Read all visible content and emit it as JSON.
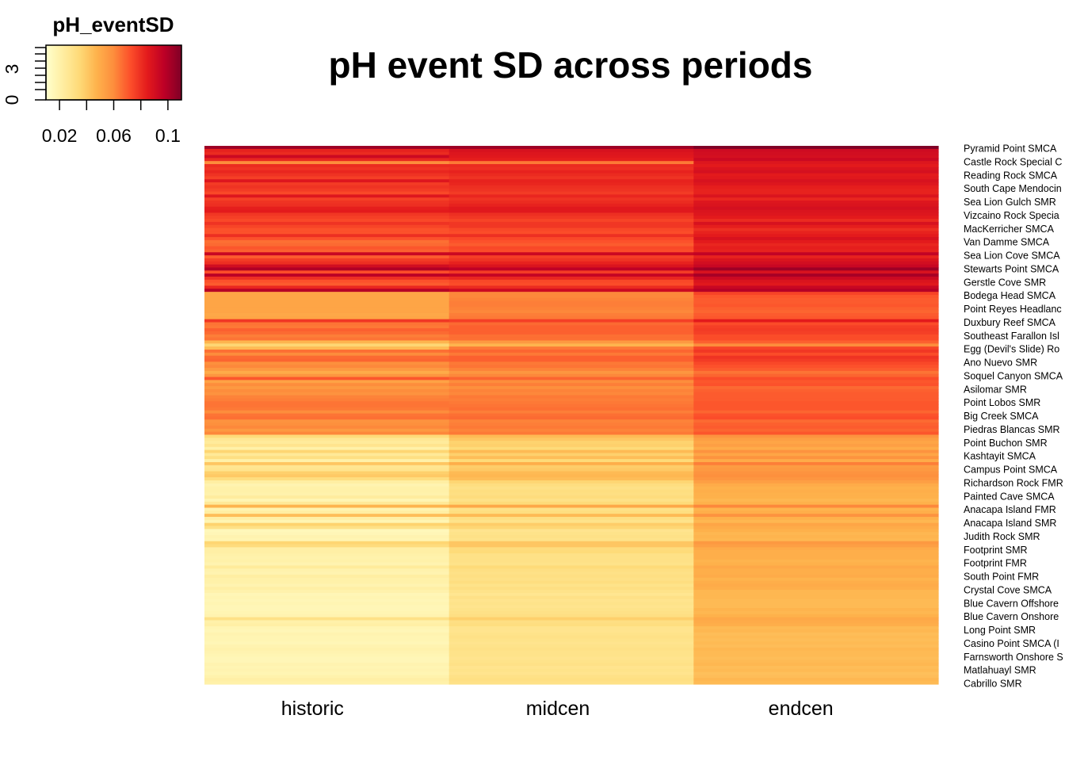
{
  "chart_data": {
    "type": "heatmap",
    "title": "pH event SD across periods",
    "columns": [
      "historic",
      "midcen",
      "endcen"
    ],
    "row_labels_shown": [
      "Pyramid Point SMCA",
      "Castle Rock Special C",
      "Reading Rock SMCA",
      "South Cape Mendocin",
      "Sea Lion Gulch SMR",
      "Vizcaino Rock Specia",
      "MacKerricher SMCA",
      "Van Damme SMCA",
      "Sea Lion Cove SMCA",
      "Stewarts Point SMCA",
      "Gerstle Cove SMR",
      "Bodega Head SMCA",
      "Point Reyes Headlanc",
      "Duxbury Reef SMCA",
      "Southeast Farallon Isl",
      "Egg (Devil's Slide) Ro",
      "Ano Nuevo SMR",
      "Soquel Canyon SMCA",
      "Asilomar SMR",
      "Point Lobos SMR",
      "Big Creek SMCA",
      "Piedras Blancas SMR",
      "Point Buchon SMR",
      "Kashtayit SMCA",
      "Campus Point SMCA",
      "Richardson Rock FMR",
      "Painted Cave SMCA",
      "Anacapa Island FMR",
      "Anacapa Island SMR",
      "Judith Rock SMR",
      "Footprint SMR",
      "Footprint FMR",
      "South Point FMR",
      "Crystal Cove SMCA",
      "Blue Cavern Offshore",
      "Blue Cavern Onshore",
      "Long Point SMR",
      "Casino Point SMCA (I",
      "Farnsworth Onshore S",
      "Matlahuayl SMR",
      "Cabrillo SMR"
    ],
    "color_key": {
      "title": "pH_eventSD",
      "x_ticks": [
        "0.02",
        "0.06",
        "0.1"
      ],
      "x_tick_values": [
        0.02,
        0.06,
        0.1
      ],
      "range": [
        0.01,
        0.11
      ],
      "y_ticks": [
        "0",
        "3"
      ],
      "palette": [
        "#FFFFCC",
        "#FFEDA0",
        "#FED976",
        "#FEB24C",
        "#FD8D3C",
        "#FC4E2A",
        "#E31A1C",
        "#BD0026",
        "#800026"
      ]
    },
    "values": [
      [
        0.104,
        0.104,
        0.11
      ],
      [
        0.083,
        0.089,
        0.092
      ],
      [
        0.081,
        0.087,
        0.091
      ],
      [
        0.093,
        0.086,
        0.09
      ],
      [
        0.082,
        0.084,
        0.093
      ],
      [
        0.06,
        0.064,
        0.087
      ],
      [
        0.081,
        0.081,
        0.085
      ],
      [
        0.079,
        0.08,
        0.088
      ],
      [
        0.082,
        0.083,
        0.09
      ],
      [
        0.079,
        0.081,
        0.085
      ],
      [
        0.076,
        0.079,
        0.086
      ],
      [
        0.087,
        0.083,
        0.089
      ],
      [
        0.077,
        0.082,
        0.087
      ],
      [
        0.079,
        0.08,
        0.084
      ],
      [
        0.077,
        0.079,
        0.083
      ],
      [
        0.074,
        0.077,
        0.083
      ],
      [
        0.087,
        0.082,
        0.088
      ],
      [
        0.076,
        0.079,
        0.082
      ],
      [
        0.079,
        0.081,
        0.087
      ],
      [
        0.08,
        0.083,
        0.088
      ],
      [
        0.084,
        0.086,
        0.09
      ],
      [
        0.085,
        0.086,
        0.088
      ],
      [
        0.078,
        0.08,
        0.087
      ],
      [
        0.076,
        0.078,
        0.085
      ],
      [
        0.074,
        0.075,
        0.081
      ],
      [
        0.079,
        0.078,
        0.089
      ],
      [
        0.075,
        0.078,
        0.084
      ],
      [
        0.072,
        0.074,
        0.08
      ],
      [
        0.072,
        0.073,
        0.083
      ],
      [
        0.08,
        0.08,
        0.085
      ],
      [
        0.072,
        0.074,
        0.089
      ],
      [
        0.066,
        0.072,
        0.085
      ],
      [
        0.067,
        0.07,
        0.082
      ],
      [
        0.071,
        0.074,
        0.084
      ],
      [
        0.069,
        0.073,
        0.083
      ],
      [
        0.094,
        0.093,
        0.096
      ],
      [
        0.07,
        0.076,
        0.083
      ],
      [
        0.077,
        0.079,
        0.088
      ],
      [
        0.08,
        0.083,
        0.091
      ],
      [
        0.091,
        0.088,
        0.094
      ],
      [
        0.1,
        0.097,
        0.104
      ],
      [
        0.073,
        0.077,
        0.089
      ],
      [
        0.098,
        0.095,
        0.102
      ],
      [
        0.08,
        0.082,
        0.093
      ],
      [
        0.072,
        0.074,
        0.088
      ],
      [
        0.07,
        0.073,
        0.086
      ],
      [
        0.082,
        0.081,
        0.094
      ],
      [
        0.099,
        0.093,
        0.099
      ],
      [
        0.052,
        0.061,
        0.075
      ],
      [
        0.052,
        0.061,
        0.071
      ],
      [
        0.052,
        0.062,
        0.07
      ],
      [
        0.052,
        0.063,
        0.07
      ],
      [
        0.052,
        0.063,
        0.071
      ],
      [
        0.052,
        0.062,
        0.069
      ],
      [
        0.052,
        0.061,
        0.068
      ],
      [
        0.051,
        0.063,
        0.07
      ],
      [
        0.052,
        0.064,
        0.071
      ],
      [
        0.078,
        0.076,
        0.085
      ],
      [
        0.065,
        0.067,
        0.073
      ],
      [
        0.064,
        0.069,
        0.076
      ],
      [
        0.069,
        0.069,
        0.077
      ],
      [
        0.067,
        0.069,
        0.076
      ],
      [
        0.063,
        0.066,
        0.073
      ],
      [
        0.065,
        0.066,
        0.073
      ],
      [
        0.047,
        0.056,
        0.069
      ],
      [
        0.036,
        0.047,
        0.06
      ],
      [
        0.045,
        0.064,
        0.075
      ],
      [
        0.066,
        0.068,
        0.078
      ],
      [
        0.06,
        0.064,
        0.073
      ],
      [
        0.067,
        0.069,
        0.079
      ],
      [
        0.068,
        0.069,
        0.077
      ],
      [
        0.059,
        0.064,
        0.074
      ],
      [
        0.061,
        0.065,
        0.072
      ],
      [
        0.056,
        0.062,
        0.07
      ],
      [
        0.05,
        0.057,
        0.065
      ],
      [
        0.057,
        0.061,
        0.068
      ],
      [
        0.071,
        0.068,
        0.073
      ],
      [
        0.053,
        0.06,
        0.071
      ],
      [
        0.06,
        0.063,
        0.072
      ],
      [
        0.056,
        0.059,
        0.067
      ],
      [
        0.06,
        0.062,
        0.069
      ],
      [
        0.058,
        0.061,
        0.07
      ],
      [
        0.062,
        0.064,
        0.07
      ],
      [
        0.063,
        0.063,
        0.07
      ],
      [
        0.065,
        0.064,
        0.071
      ],
      [
        0.065,
        0.065,
        0.071
      ],
      [
        0.064,
        0.066,
        0.071
      ],
      [
        0.06,
        0.063,
        0.068
      ],
      [
        0.065,
        0.066,
        0.072
      ],
      [
        0.066,
        0.067,
        0.073
      ],
      [
        0.058,
        0.062,
        0.067
      ],
      [
        0.059,
        0.063,
        0.069
      ],
      [
        0.061,
        0.064,
        0.07
      ],
      [
        0.056,
        0.062,
        0.068
      ],
      [
        0.061,
        0.064,
        0.071
      ],
      [
        0.034,
        0.045,
        0.058
      ],
      [
        0.026,
        0.041,
        0.054
      ],
      [
        0.024,
        0.037,
        0.052
      ],
      [
        0.028,
        0.038,
        0.054
      ],
      [
        0.02,
        0.034,
        0.05
      ],
      [
        0.036,
        0.045,
        0.058
      ],
      [
        0.025,
        0.038,
        0.052
      ],
      [
        0.031,
        0.044,
        0.058
      ],
      [
        0.02,
        0.034,
        0.05
      ],
      [
        0.041,
        0.049,
        0.063
      ],
      [
        0.027,
        0.039,
        0.055
      ],
      [
        0.028,
        0.04,
        0.056
      ],
      [
        0.038,
        0.045,
        0.058
      ],
      [
        0.04,
        0.046,
        0.059
      ],
      [
        0.032,
        0.044,
        0.057
      ],
      [
        0.022,
        0.036,
        0.054
      ],
      [
        0.018,
        0.032,
        0.05
      ],
      [
        0.02,
        0.03,
        0.048
      ],
      [
        0.02,
        0.032,
        0.049
      ],
      [
        0.019,
        0.031,
        0.048
      ],
      [
        0.023,
        0.033,
        0.048
      ],
      [
        0.017,
        0.03,
        0.046
      ],
      [
        0.025,
        0.034,
        0.048
      ],
      [
        0.047,
        0.051,
        0.061
      ],
      [
        0.018,
        0.03,
        0.047
      ],
      [
        0.022,
        0.032,
        0.049
      ],
      [
        0.044,
        0.045,
        0.058
      ],
      [
        0.021,
        0.031,
        0.048
      ],
      [
        0.017,
        0.029,
        0.046
      ],
      [
        0.037,
        0.039,
        0.052
      ],
      [
        0.03,
        0.036,
        0.05
      ],
      [
        0.015,
        0.028,
        0.048
      ],
      [
        0.016,
        0.029,
        0.046
      ],
      [
        0.018,
        0.03,
        0.047
      ],
      [
        0.017,
        0.029,
        0.046
      ],
      [
        0.036,
        0.041,
        0.056
      ],
      [
        0.033,
        0.041,
        0.054
      ],
      [
        0.021,
        0.033,
        0.05
      ],
      [
        0.021,
        0.034,
        0.049
      ],
      [
        0.02,
        0.03,
        0.049
      ],
      [
        0.019,
        0.03,
        0.049
      ],
      [
        0.02,
        0.03,
        0.047
      ],
      [
        0.018,
        0.029,
        0.048
      ],
      [
        0.024,
        0.034,
        0.051
      ],
      [
        0.019,
        0.031,
        0.049
      ],
      [
        0.018,
        0.03,
        0.049
      ],
      [
        0.022,
        0.031,
        0.05
      ],
      [
        0.02,
        0.03,
        0.047
      ],
      [
        0.02,
        0.032,
        0.049
      ],
      [
        0.018,
        0.029,
        0.05
      ],
      [
        0.021,
        0.031,
        0.049
      ],
      [
        0.019,
        0.029,
        0.046
      ],
      [
        0.016,
        0.027,
        0.046
      ],
      [
        0.017,
        0.03,
        0.046
      ],
      [
        0.016,
        0.028,
        0.045
      ],
      [
        0.017,
        0.029,
        0.045
      ],
      [
        0.016,
        0.028,
        0.045
      ],
      [
        0.016,
        0.029,
        0.047
      ],
      [
        0.017,
        0.03,
        0.046
      ],
      [
        0.018,
        0.031,
        0.048
      ],
      [
        0.03,
        0.038,
        0.051
      ],
      [
        0.02,
        0.031,
        0.05
      ],
      [
        0.021,
        0.032,
        0.049
      ],
      [
        0.017,
        0.028,
        0.045
      ],
      [
        0.016,
        0.028,
        0.046
      ],
      [
        0.018,
        0.029,
        0.044
      ],
      [
        0.017,
        0.03,
        0.045
      ],
      [
        0.017,
        0.029,
        0.044
      ],
      [
        0.016,
        0.028,
        0.045
      ],
      [
        0.018,
        0.029,
        0.044
      ],
      [
        0.019,
        0.03,
        0.046
      ],
      [
        0.018,
        0.029,
        0.045
      ],
      [
        0.017,
        0.029,
        0.045
      ],
      [
        0.016,
        0.028,
        0.044
      ],
      [
        0.016,
        0.029,
        0.045
      ],
      [
        0.018,
        0.03,
        0.046
      ],
      [
        0.017,
        0.028,
        0.044
      ],
      [
        0.018,
        0.029,
        0.045
      ],
      [
        0.017,
        0.028,
        0.043
      ],
      [
        0.019,
        0.03,
        0.044
      ],
      [
        0.021,
        0.031,
        0.046
      ],
      [
        0.02,
        0.03,
        0.045
      ]
    ]
  }
}
